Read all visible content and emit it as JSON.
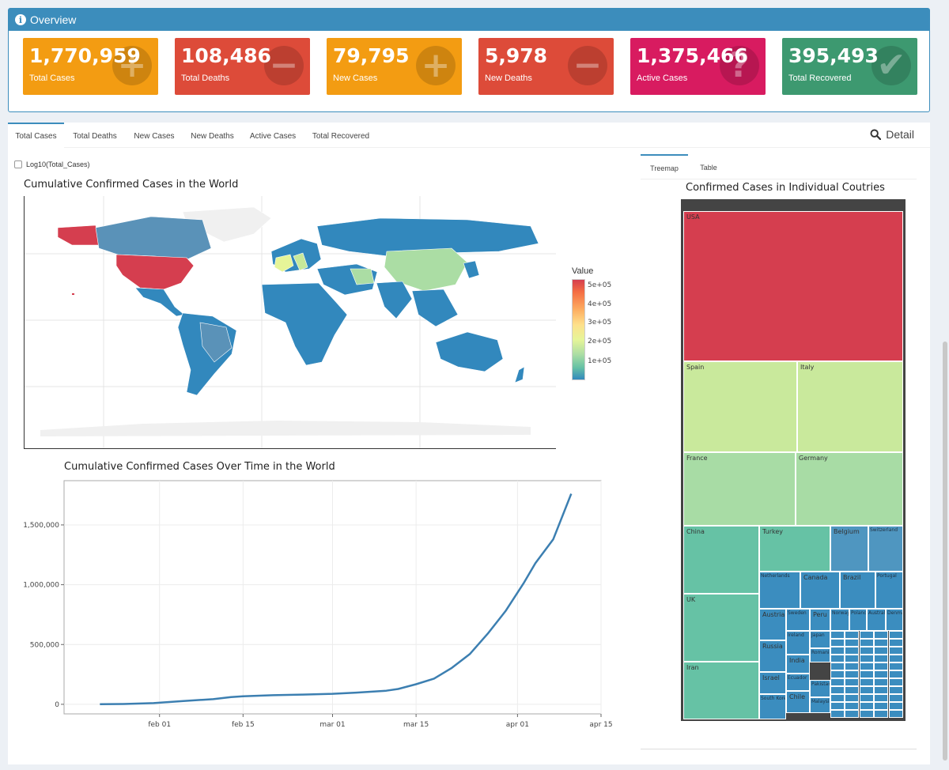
{
  "overview": {
    "title": "Overview",
    "boxes": [
      {
        "value": "1,770,959",
        "label": "Total Cases",
        "color": "#f39c12",
        "icon": "plus-icon",
        "glyph": "+"
      },
      {
        "value": "108,486",
        "label": "Total Deaths",
        "color": "#dd4b39",
        "icon": "minus-icon",
        "glyph": "−"
      },
      {
        "value": "79,795",
        "label": "New Cases",
        "color": "#f39c12",
        "icon": "plus-icon",
        "glyph": "+"
      },
      {
        "value": "5,978",
        "label": "New Deaths",
        "color": "#dd4b39",
        "icon": "minus-icon",
        "glyph": "−"
      },
      {
        "value": "1,375,466",
        "label": "Active Cases",
        "color": "#d81b60",
        "icon": "question-icon",
        "glyph": "?"
      },
      {
        "value": "395,493",
        "label": "Total Recovered",
        "color": "#3d9970",
        "icon": "check-icon",
        "glyph": "✔"
      }
    ]
  },
  "tabs": [
    "Total Cases",
    "Total Deaths",
    "New Cases",
    "New Deaths",
    "Active Cases",
    "Total Recovered"
  ],
  "detail_label": "Detail",
  "log_checkbox_label": "Log10(Total_Cases)",
  "map": {
    "title": "Cumulative Confirmed Cases in the World",
    "legend_title": "Value",
    "legend_ticks": [
      "5e+05",
      "4e+05",
      "3e+05",
      "2e+05",
      "1e+05"
    ]
  },
  "line": {
    "title": "Cumulative Confirmed Cases Over Time in the World"
  },
  "side_tabs": [
    "Treemap",
    "Table"
  ],
  "treemap_title": "Confirmed Cases in Individual Coutries",
  "treemap_labels": {
    "usa": "USA",
    "spain": "Spain",
    "italy": "Italy",
    "france": "France",
    "germany": "Germany",
    "china": "China",
    "turkey": "Turkey",
    "belgium": "Belgium",
    "switzerland": "Switzerland",
    "uk": "UK",
    "netherlands": "Netherlands",
    "canada": "Canada",
    "brazil": "Brazil",
    "portugal": "Portugal",
    "austria": "Austria",
    "sweden": "Sweden",
    "peru": "Peru",
    "norway": "Norway",
    "poland": "Poland",
    "australia": "Australia",
    "denmark": "Denmark",
    "russia": "Russia",
    "ireland": "Ireland",
    "japan": "Japan",
    "romania": "Romania",
    "chile": "Chile",
    "iran": "Iran",
    "israel": "Israel",
    "india": "India",
    "ecuador": "Ecuador",
    "pakistan": "Pakistan",
    "southkorea": "South Korea",
    "malaysia": "Malaysia"
  },
  "chart_data": [
    {
      "type": "line",
      "title": "Cumulative Confirmed Cases Over Time in the World",
      "xlabel": "",
      "ylabel": "",
      "x_ticks": [
        "feb 01",
        "feb 15",
        "mar 01",
        "mar 15",
        "apr 01",
        "apr 15"
      ],
      "y_ticks": [
        "0",
        "500,000",
        "1,000,000",
        "1,500,000"
      ],
      "ylim": [
        -80000,
        1870000
      ],
      "xlim": [
        "2020-01-16",
        "2020-04-15"
      ],
      "grid": true,
      "series": [
        {
          "color": "#3c7fb1",
          "x": [
            "2020-01-22",
            "2020-01-26",
            "2020-01-31",
            "2020-02-05",
            "2020-02-10",
            "2020-02-13",
            "2020-02-15",
            "2020-02-20",
            "2020-02-25",
            "2020-03-01",
            "2020-03-05",
            "2020-03-10",
            "2020-03-12",
            "2020-03-15",
            "2020-03-18",
            "2020-03-21",
            "2020-03-24",
            "2020-03-27",
            "2020-03-30",
            "2020-04-02",
            "2020-04-04",
            "2020-04-07",
            "2020-04-10"
          ],
          "values": [
            580,
            2800,
            10000,
            28000,
            43000,
            60000,
            67000,
            76000,
            81000,
            88000,
            98000,
            114000,
            128000,
            168000,
            215000,
            305000,
            420000,
            590000,
            780000,
            1010000,
            1180000,
            1380000,
            1760000
          ]
        }
      ]
    },
    {
      "type": "heatmap",
      "title": "Cumulative Confirmed Cases in the World",
      "legend_title": "Value",
      "legend_ticks": [
        "1e+05",
        "2e+05",
        "3e+05",
        "4e+05",
        "5e+05"
      ]
    }
  ]
}
